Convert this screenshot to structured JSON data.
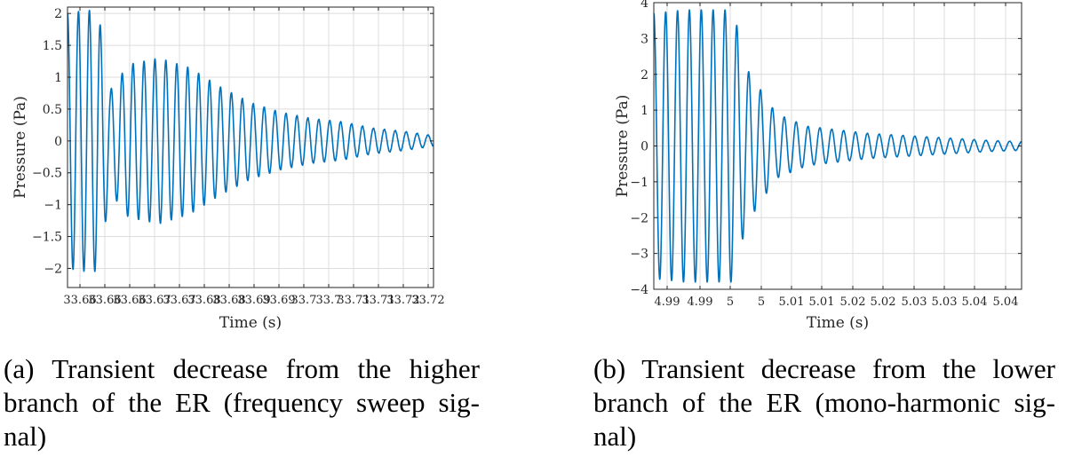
{
  "chart_data": [
    {
      "type": "line",
      "xlabel": "Time (s)",
      "ylabel": "Pressure (Pa)",
      "xlim": [
        33.66,
        33.72
      ],
      "ylim": [
        -2.3,
        2.1
      ],
      "grid": true,
      "yticks": [
        2,
        1.5,
        1,
        0.5,
        0,
        -0.5,
        -1,
        -1.5,
        -2
      ],
      "ytick_labels": [
        "2",
        "1.5",
        "1",
        "0.5",
        "0",
        "−0.5",
        "−1",
        "−1.5",
        "−2"
      ],
      "xtick_labels": [
        "33.66",
        "33.66",
        "33.66",
        "33.67",
        "33.67",
        "33.68",
        "33.68",
        "33.69",
        "33.69",
        "33.7",
        "33.7",
        "33.71",
        "33.71",
        "33.72",
        "33.72"
      ],
      "series": [
        {
          "color": "#0072bd",
          "x": [
            33.66,
            33.663,
            33.665,
            33.667,
            33.67,
            33.675,
            33.68,
            33.685,
            33.69,
            33.695,
            33.7,
            33.705,
            33.71,
            33.715,
            33.72
          ],
          "y_envelope": [
            2.0,
            2.05,
            2.05,
            0.8,
            1.2,
            1.3,
            1.15,
            0.85,
            0.6,
            0.45,
            0.35,
            0.3,
            0.2,
            0.15,
            0.08
          ]
        }
      ]
    },
    {
      "type": "line",
      "xlabel": "Time (s)",
      "ylabel": "Pressure (Pa)",
      "xlim": [
        4.985,
        5.045
      ],
      "ylim": [
        -4,
        4
      ],
      "grid": true,
      "yticks": [
        4,
        3,
        2,
        1,
        0,
        -1,
        -2,
        -3,
        -4
      ],
      "ytick_labels": [
        "4",
        "3",
        "2",
        "1",
        "0",
        "−1",
        "−2",
        "−3",
        "−4"
      ],
      "xtick_labels": [
        "4.99",
        "4.99",
        "5",
        "5",
        "5.01",
        "5.01",
        "5.02",
        "5.02",
        "5.03",
        "5.03",
        "5.04",
        "5.04"
      ],
      "series": [
        {
          "color": "#0072bd",
          "x": [
            4.985,
            4.99,
            4.995,
            4.998,
            5.0,
            5.005,
            5.01,
            5.015,
            5.02,
            5.03,
            5.04,
            5.045
          ],
          "y_envelope": [
            3.7,
            3.8,
            3.8,
            3.8,
            2.2,
            0.9,
            0.55,
            0.45,
            0.35,
            0.25,
            0.15,
            0.12
          ]
        }
      ]
    }
  ],
  "captions": {
    "a": [
      "(a) Transient decrease from the higher",
      "branch of the ER (frequency sweep sig-",
      "nal)"
    ],
    "b": [
      "(b) Transient decrease from the lower",
      "branch of the ER (mono-harmonic sig-",
      "nal)"
    ]
  }
}
